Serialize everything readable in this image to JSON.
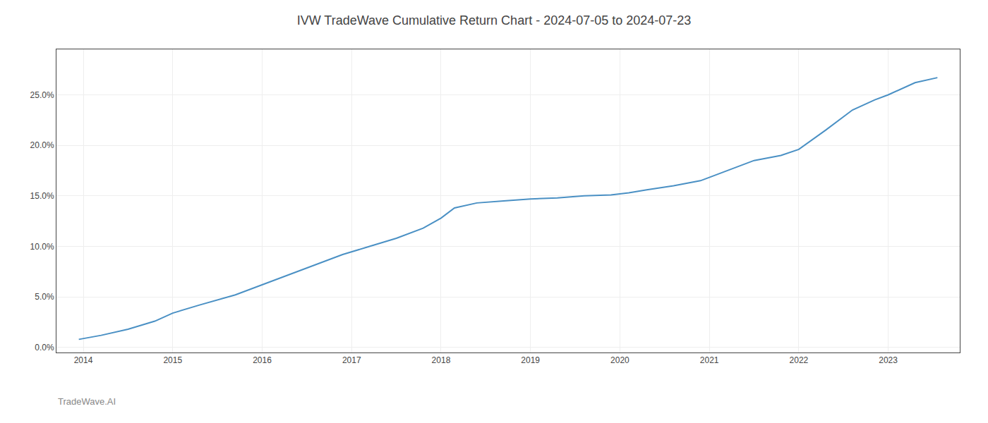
{
  "chart_data": {
    "type": "line",
    "title": "IVW TradeWave Cumulative Return Chart - 2024-07-05 to 2024-07-23",
    "annotations": [
      "TradeWave.AI"
    ],
    "x": [
      2013.95,
      2014.2,
      2014.5,
      2014.8,
      2015.0,
      2015.3,
      2015.7,
      2016.0,
      2016.3,
      2016.6,
      2016.9,
      2017.2,
      2017.5,
      2017.8,
      2018.0,
      2018.15,
      2018.4,
      2018.7,
      2019.0,
      2019.3,
      2019.6,
      2019.9,
      2020.1,
      2020.3,
      2020.6,
      2020.9,
      2021.2,
      2021.5,
      2021.8,
      2022.0,
      2022.3,
      2022.6,
      2022.85,
      2023.0,
      2023.3,
      2023.55
    ],
    "values": [
      0.008,
      0.012,
      0.018,
      0.026,
      0.034,
      0.042,
      0.052,
      0.062,
      0.072,
      0.082,
      0.092,
      0.1,
      0.108,
      0.118,
      0.128,
      0.138,
      0.143,
      0.145,
      0.147,
      0.148,
      0.15,
      0.151,
      0.153,
      0.156,
      0.16,
      0.165,
      0.175,
      0.185,
      0.19,
      0.196,
      0.215,
      0.235,
      0.245,
      0.25,
      0.262,
      0.267
    ],
    "color": "#4a90c4",
    "xlim": [
      2013.7,
      2023.8
    ],
    "xticks": [
      2014,
      2015,
      2016,
      2017,
      2018,
      2019,
      2020,
      2021,
      2022,
      2023
    ],
    "ylim": [
      -0.005,
      0.295
    ],
    "yticks": [
      {
        "value": 0.0,
        "label": "0.0%"
      },
      {
        "value": 0.05,
        "label": "5.0%"
      },
      {
        "value": 0.1,
        "label": "10.0%"
      },
      {
        "value": 0.15,
        "label": "15.0%"
      },
      {
        "value": 0.2,
        "label": "20.0%"
      },
      {
        "value": 0.25,
        "label": "25.0%"
      }
    ],
    "grid": true
  }
}
